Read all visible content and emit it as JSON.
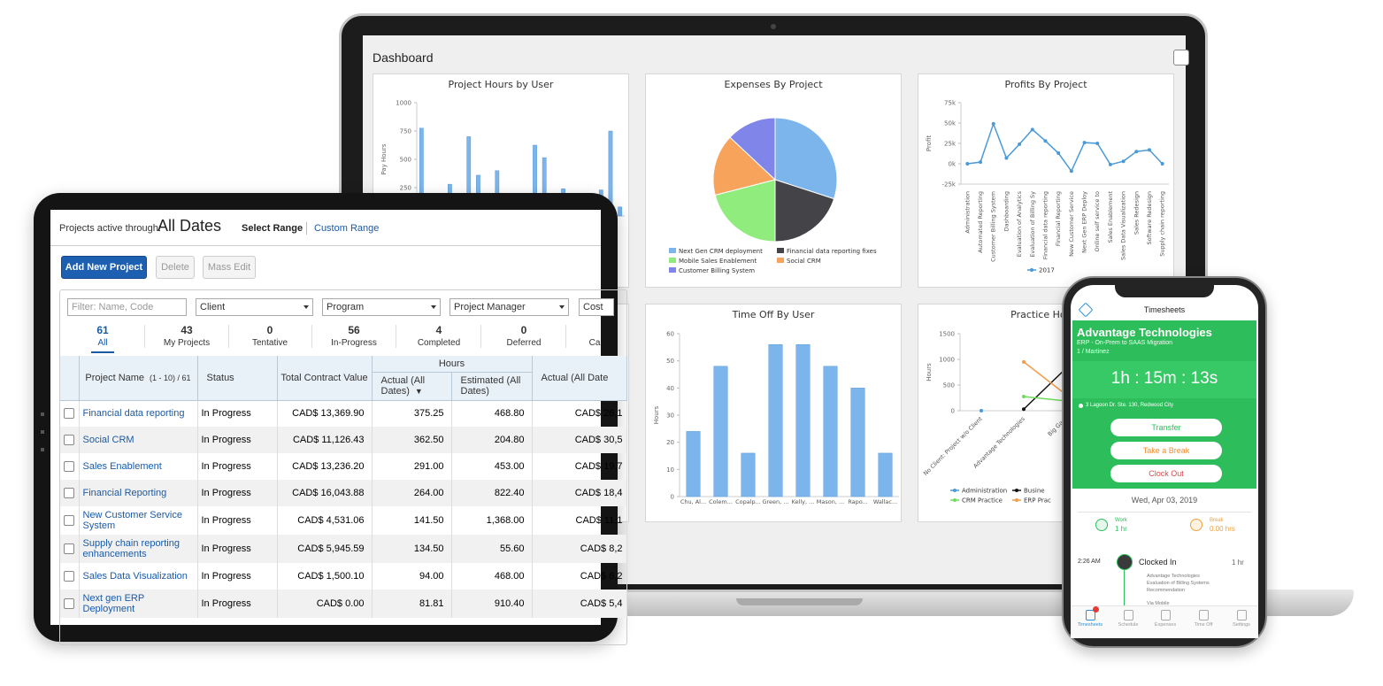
{
  "laptop": {
    "title": "Dashboard",
    "charts": [
      {
        "type": "bar",
        "title": "Project Hours by User",
        "ylabel": "Pay Hours",
        "color": "#7cb5ec",
        "categories": [
          null,
          null,
          null,
          null,
          null,
          null,
          null,
          null,
          null,
          null,
          null,
          null,
          null,
          null,
          null,
          null,
          null,
          null,
          null,
          null,
          null,
          null
        ],
        "values": [
          775,
          null,
          null,
          280,
          null,
          700,
          360,
          null,
          400,
          null,
          null,
          null,
          625,
          515,
          null,
          240,
          null,
          null,
          null,
          230,
          750,
          80
        ],
        "ylim": [
          0,
          1000
        ],
        "yticks": [
          0,
          250,
          500,
          750,
          1000
        ]
      },
      {
        "type": "pie",
        "title": "Expenses By Project",
        "categories": [
          "Next Gen CRM deployment",
          "Financial data reporting fixes",
          "Mobile Sales Enablement",
          "Social CRM",
          "Customer Billing System"
        ],
        "values": [
          30,
          20,
          21,
          16,
          13
        ],
        "colors": [
          "#7cb5ec",
          "#434348",
          "#90ed7d",
          "#f7a35c",
          "#8085e9"
        ]
      },
      {
        "type": "line",
        "title": "Profits By Project",
        "ylabel": "Profit",
        "categories": [
          "Administration",
          "Automated Reporting",
          "Customer Billing System",
          "Dashboarding",
          "Evaluation of Analytics",
          "Evaluation of Billing Sy",
          "Financial data reporting",
          "Financial Reporting",
          "New Customer Service",
          "Next Gen ERP Deploy",
          "Online self service to",
          "Sales Enablement",
          "Sales Data Visualization",
          "Sales Redesign",
          "Software Redesign",
          "Supply chain reporting"
        ],
        "series": [
          {
            "name": "2017",
            "color": "#4a9ad8",
            "values": [
              0,
              2000,
              49000,
              7000,
              24000,
              42000,
              28000,
              13000,
              -9000,
              26000,
              25000,
              -1000,
              3000,
              15000,
              17000,
              0
            ]
          }
        ],
        "ylim": [
          -25000,
          75000
        ],
        "yticks": [
          {
            "value": -25000,
            "label": "-25k"
          },
          {
            "value": 0,
            "label": "0k"
          },
          {
            "value": 25000,
            "label": "25k"
          },
          {
            "value": 50000,
            "label": "50k"
          },
          {
            "value": 75000,
            "label": "75k"
          }
        ]
      },
      {
        "type": "bar",
        "title": "Time Off By User",
        "ylabel": "Hours",
        "color": "#7cb5ec",
        "categories": [
          "Chu, Al...",
          "Colem...",
          "Copalp...",
          "Green, ...",
          "Kelly, ...",
          "Mason, ...",
          "Rapo...",
          "Wallac..."
        ],
        "values": [
          24,
          48,
          16,
          56,
          56,
          48,
          40,
          16
        ],
        "ylim": [
          0,
          60
        ],
        "yticks": [
          0,
          10,
          20,
          30,
          40,
          50,
          60
        ]
      },
      {
        "type": "line",
        "title": "Practice Hours",
        "ylabel": "Hours",
        "categories": [
          "No Client: Project w/o Client",
          "Advantage Technologies",
          "Big Gam"
        ],
        "series": [
          {
            "name": "Administration",
            "color": "#4a9ad8",
            "values": [
              0,
              null,
              null
            ]
          },
          {
            "name": "Busine",
            "color": "#111111",
            "values": [
              null,
              30,
              830
            ]
          },
          {
            "name": "CRM Practice",
            "color": "#6fdc5c",
            "values": [
              null,
              275,
              190
            ]
          },
          {
            "name": "ERP Prac",
            "color": "#f39c4a",
            "values": [
              null,
              950,
              310
            ]
          }
        ],
        "ylim": [
          0,
          1500
        ],
        "yticks": [
          0,
          500,
          1000,
          1500
        ]
      }
    ]
  },
  "tablet": {
    "active_label": "Projects active through:",
    "active_value": "All Dates",
    "select_range": "Select Range",
    "custom_range": "Custom Range",
    "buttons": [
      "Add New Project",
      "Delete",
      "Mass Edit"
    ],
    "filters": [
      "Filter: Name, Code",
      "Client",
      "Program",
      "Project Manager",
      "Cost"
    ],
    "tabs": [
      {
        "count": 61,
        "label": "All"
      },
      {
        "count": 43,
        "label": "My Projects"
      },
      {
        "count": 0,
        "label": "Tentative"
      },
      {
        "count": 56,
        "label": "In-Progress"
      },
      {
        "count": 4,
        "label": "Completed"
      },
      {
        "count": 0,
        "label": "Deferred"
      },
      {
        "label": "Ca"
      }
    ],
    "table": {
      "header": {
        "name": "Project Name",
        "range": "(1 - 10) / 61",
        "status": "Status",
        "tcv": "Total Contract Value",
        "group": "Hours",
        "actual": "Actual (All Dates)",
        "sort": "▼",
        "estimated": "Estimated (All Dates)",
        "actual2": "Actual (All Date"
      },
      "rows": [
        [
          "Financial data reporting",
          "In Progress",
          "CAD$ 13,369.90",
          "375.25",
          "468.80",
          "CAD$ 26,1"
        ],
        [
          "Social CRM",
          "In Progress",
          "CAD$ 11,126.43",
          "362.50",
          "204.80",
          "CAD$ 30,5"
        ],
        [
          "Sales Enablement",
          "In Progress",
          "CAD$ 13,236.20",
          "291.00",
          "453.00",
          "CAD$ 19,7"
        ],
        [
          "Financial Reporting",
          "In Progress",
          "CAD$ 16,043.88",
          "264.00",
          "822.40",
          "CAD$ 18,4"
        ],
        [
          "New Customer Service System",
          "In Progress",
          "CAD$ 4,531.06",
          "141.50",
          "1,368.00",
          "CAD$ 11,1"
        ],
        [
          "Supply chain reporting enhancements",
          "In Progress",
          "CAD$ 5,945.59",
          "134.50",
          "55.60",
          "CAD$ 8,2"
        ],
        [
          "Sales Data Visualization",
          "In Progress",
          "CAD$ 1,500.10",
          "94.00",
          "468.00",
          "CAD$ 6,2"
        ],
        [
          "Next gen ERP Deployment",
          "In Progress",
          "CAD$ 0.00",
          "81.81",
          "910.40",
          "CAD$ 5,4"
        ]
      ]
    }
  },
  "phone": {
    "header": "Timesheets",
    "client": "Advantage Technologies",
    "project": "ERP - On-Prem to SAAS Migration",
    "task": "1 / Martinez",
    "timer": "1h : 15m : 13s",
    "address": "3 Lagoon Dr. Ste. 130, Redwood City",
    "buttons": [
      "Transfer",
      "Take a Break",
      "Clock Out"
    ],
    "date": "Wed, Apr 03, 2019",
    "work_label": "Work",
    "work_value": "1 hr",
    "break_label": "Break",
    "break_value": "0.00 hrs",
    "entry": {
      "time": "2:26 AM",
      "title": "Clocked In",
      "duration": "1 hr",
      "lines": [
        "Advantage Technologies",
        "Evaluation of Billing Systems",
        "Recommendation"
      ],
      "via": "Via Mobile"
    },
    "nav": [
      "Timesheets",
      "Schedule",
      "Expenses",
      "Time Off",
      "Settings"
    ]
  }
}
